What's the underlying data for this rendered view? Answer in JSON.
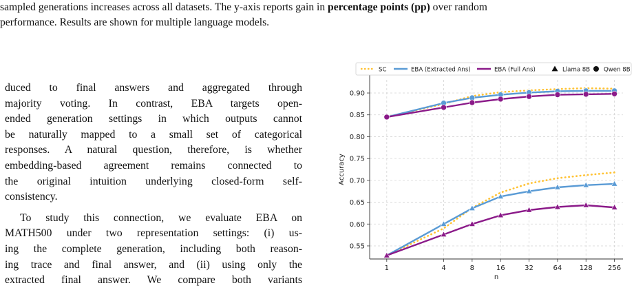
{
  "caption": {
    "line1_a": "sampled generations increases across all datasets. The y-axis reports gain in ",
    "line1_bold": "percentage points (pp)",
    "line1_b": " over random",
    "line2": "performance. Results are shown for multiple language models."
  },
  "body": {
    "para1_lines": [
      "duced to final answers and aggregated through",
      "majority voting. In contrast, EBA targets open-",
      "ended generation settings in which outputs cannot",
      "be naturally mapped to a small set of categorical",
      "responses. A natural question, therefore, is whether",
      "embedding-based agreement remains connected to",
      "the original intuition underlying closed-form self-",
      "consistency."
    ],
    "para2_lines": [
      "To study this connection, we evaluate EBA on",
      "MATH500 under two representation settings: (i) us-",
      "ing the complete generation, including both reason-",
      "ing trace and final answer, and (ii) using only the",
      "extracted final answer. We compare both variants"
    ]
  },
  "chart_data": {
    "type": "line",
    "xlabel": "n",
    "ylabel": "Accuracy",
    "x": [
      1,
      4,
      8,
      16,
      32,
      64,
      128,
      256
    ],
    "x_scale": "log2",
    "x_ticks": [
      "1",
      "4",
      "8",
      "16",
      "32",
      "64",
      "128",
      "256"
    ],
    "ylim": [
      0.52,
      0.93
    ],
    "y_ticks": [
      "0.55",
      "0.60",
      "0.65",
      "0.70",
      "0.75",
      "0.80",
      "0.85",
      "0.90"
    ],
    "grid": true,
    "legend_position": "top",
    "legend": [
      "SC",
      "EBA (Extracted Ans)",
      "EBA (Full Ans)",
      "Llama 8B",
      "Qwen 8B"
    ],
    "series": [
      {
        "name": "SC",
        "method": "SC",
        "model": "Qwen 8B",
        "color": "#ffc233",
        "style": "dotted",
        "marker": "none",
        "values": [
          0.845,
          0.875,
          0.893,
          0.902,
          0.906,
          0.909,
          0.911,
          0.91
        ]
      },
      {
        "name": "EBA (Extracted Ans)",
        "method": "EBA (Extracted Ans)",
        "model": "Qwen 8B",
        "color": "#5a9bd5",
        "style": "solid",
        "marker": "circle",
        "values": [
          0.845,
          0.877,
          0.889,
          0.896,
          0.901,
          0.904,
          0.905,
          0.905
        ]
      },
      {
        "name": "EBA (Full Ans)",
        "method": "EBA (Full Ans)",
        "model": "Qwen 8B",
        "color": "#8b1a89",
        "style": "solid",
        "marker": "circle",
        "values": [
          0.845,
          0.867,
          0.878,
          0.886,
          0.892,
          0.896,
          0.897,
          0.898
        ]
      },
      {
        "name": "SC",
        "method": "SC",
        "model": "Llama 8B",
        "color": "#ffc233",
        "style": "dotted",
        "marker": "none",
        "values": [
          0.528,
          0.59,
          0.637,
          0.672,
          0.693,
          0.705,
          0.712,
          0.718
        ]
      },
      {
        "name": "EBA (Extracted Ans)",
        "method": "EBA (Extracted Ans)",
        "model": "Llama 8B",
        "color": "#5a9bd5",
        "style": "solid",
        "marker": "triangle",
        "values": [
          0.528,
          0.6,
          0.636,
          0.663,
          0.675,
          0.684,
          0.689,
          0.692
        ]
      },
      {
        "name": "EBA (Full Ans)",
        "method": "EBA (Full Ans)",
        "model": "Llama 8B",
        "color": "#8b1a89",
        "style": "solid",
        "marker": "triangle",
        "values": [
          0.528,
          0.576,
          0.6,
          0.62,
          0.632,
          0.639,
          0.643,
          0.638
        ]
      }
    ]
  }
}
